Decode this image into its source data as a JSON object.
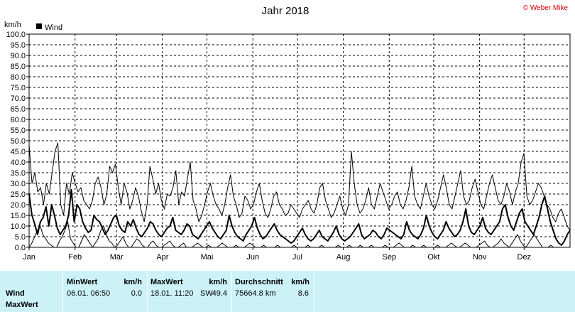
{
  "chart_data": {
    "type": "line",
    "title": "Jahr 2018",
    "copyright": "© Weber Mike",
    "ylabel": "km/h",
    "ylim": [
      0,
      100
    ],
    "yticks": [
      "0.0",
      "5.0",
      "10.0",
      "15.0",
      "20.0",
      "25.0",
      "30.0",
      "35.0",
      "40.0",
      "45.0",
      "50.0",
      "55.0",
      "60.0",
      "65.0",
      "70.0",
      "75.0",
      "80.0",
      "85.0",
      "90.0",
      "95.0",
      "100.0"
    ],
    "xlabels": [
      "Jan",
      "Feb",
      "Mär",
      "Apr",
      "Mai",
      "Jun",
      "Jul",
      "Aug",
      "Sep",
      "Okt",
      "Nov",
      "Dez"
    ],
    "grid": true,
    "legend": {
      "label": "Wind",
      "placement": "top-left"
    },
    "series": [
      {
        "name": "Wind",
        "style": "thick",
        "values": [
          25,
          15,
          11,
          6,
          12,
          14,
          19,
          10,
          20,
          15,
          9,
          6,
          8,
          10,
          15,
          27,
          12,
          20,
          18,
          12,
          9,
          7,
          8,
          15,
          13,
          12,
          9,
          6,
          8,
          11,
          14,
          15,
          10,
          8,
          7,
          12,
          10,
          13,
          9,
          6,
          5,
          7,
          9,
          12,
          11,
          8,
          6,
          5,
          7,
          9,
          10,
          14,
          8,
          7,
          6,
          8,
          11,
          10,
          6,
          5,
          4,
          6,
          8,
          10,
          12,
          9,
          7,
          5,
          4,
          6,
          8,
          15,
          10,
          7,
          5,
          4,
          3,
          6,
          8,
          10,
          14,
          9,
          6,
          4,
          5,
          7,
          9,
          11,
          8,
          6,
          5,
          4,
          3,
          2,
          3,
          5,
          7,
          9,
          6,
          4,
          3,
          4,
          6,
          8,
          5,
          4,
          3,
          5,
          7,
          10,
          6,
          4,
          3,
          4,
          5,
          7,
          9,
          11,
          6,
          4,
          5,
          6,
          8,
          7,
          5,
          4,
          6,
          9,
          8,
          7,
          6,
          5,
          4,
          6,
          12,
          8,
          6,
          5,
          4,
          6,
          9,
          15,
          10,
          7,
          5,
          4,
          6,
          8,
          12,
          9,
          7,
          5,
          6,
          8,
          12,
          18,
          10,
          7,
          6,
          8,
          10,
          14,
          9,
          7,
          6,
          8,
          10,
          12,
          18,
          20,
          14,
          10,
          8,
          12,
          16,
          18,
          12,
          10,
          8,
          6,
          10,
          14,
          20,
          24,
          18,
          12,
          8,
          4,
          2,
          1,
          3,
          6,
          8
        ]
      },
      {
        "name": "MaxWert",
        "style": "thin",
        "values": [
          48,
          30,
          35,
          26,
          28,
          20,
          30,
          25,
          35,
          45,
          49,
          20,
          15,
          30,
          25,
          35,
          30,
          26,
          28,
          22,
          20,
          18,
          22,
          30,
          33,
          28,
          20,
          25,
          38,
          35,
          39,
          28,
          20,
          30,
          26,
          18,
          22,
          28,
          24,
          17,
          12,
          20,
          38,
          32,
          25,
          30,
          22,
          18,
          25,
          24,
          28,
          36,
          20,
          26,
          24,
          32,
          40,
          22,
          18,
          12,
          15,
          20,
          26,
          30,
          24,
          20,
          18,
          15,
          20,
          28,
          34,
          24,
          20,
          14,
          16,
          24,
          22,
          18,
          20,
          26,
          30,
          22,
          16,
          14,
          18,
          24,
          26,
          20,
          18,
          15,
          16,
          20,
          18,
          16,
          14,
          18,
          20,
          22,
          18,
          16,
          20,
          28,
          30,
          22,
          18,
          14,
          16,
          20,
          24,
          18,
          15,
          20,
          45,
          30,
          20,
          16,
          18,
          22,
          28,
          20,
          18,
          24,
          30,
          26,
          22,
          18,
          20,
          24,
          26,
          20,
          18,
          22,
          28,
          38,
          24,
          20,
          18,
          24,
          30,
          24,
          20,
          18,
          22,
          28,
          34,
          28,
          20,
          18,
          24,
          30,
          36,
          24,
          20,
          22,
          28,
          32,
          26,
          20,
          18,
          24,
          30,
          34,
          28,
          22,
          20,
          24,
          30,
          26,
          20,
          26,
          30,
          40,
          44,
          24,
          20,
          22,
          26,
          30,
          28,
          24,
          20,
          18,
          14,
          12,
          16,
          18,
          14,
          10,
          8
        ]
      },
      {
        "name": "MinWert",
        "style": "thin",
        "values": [
          0,
          2,
          5,
          8,
          10,
          6,
          4,
          2,
          1,
          0,
          0,
          3,
          5,
          8,
          12,
          4,
          2,
          0,
          0,
          3,
          6,
          4,
          2,
          0,
          2,
          4,
          8,
          10,
          6,
          3,
          2,
          0,
          1,
          3,
          5,
          2,
          0,
          0,
          2,
          4,
          3,
          1,
          0,
          0,
          2,
          3,
          1,
          0,
          0,
          1,
          2,
          3,
          1,
          0,
          0,
          1,
          2,
          0,
          0,
          0,
          1,
          2,
          1,
          0,
          0,
          1,
          0,
          0,
          0,
          1,
          2,
          1,
          0,
          0,
          0,
          1,
          0,
          0,
          0,
          1,
          2,
          1,
          0,
          0,
          0,
          1,
          0,
          0,
          0,
          0,
          1,
          0,
          0,
          0,
          0,
          0,
          1,
          0,
          0,
          0,
          0,
          1,
          0,
          0,
          0,
          0,
          1,
          0,
          0,
          0,
          0,
          0,
          1,
          0,
          0,
          0,
          1,
          0,
          0,
          0,
          1,
          0,
          0,
          0,
          1,
          0,
          0,
          0,
          0,
          1,
          0,
          0,
          0,
          1,
          2,
          1,
          0,
          0,
          0,
          1,
          0,
          0,
          0,
          1,
          0,
          0,
          0,
          0,
          1,
          0,
          0,
          0,
          1,
          2,
          1,
          0,
          0,
          1,
          2,
          1,
          0,
          0,
          0,
          1,
          2,
          3,
          1,
          0,
          0,
          1,
          2,
          4,
          2,
          1,
          0,
          2,
          4,
          6,
          3,
          1,
          0,
          2,
          4,
          6,
          4,
          2,
          0,
          0,
          0,
          1,
          0,
          0,
          0,
          0,
          0,
          0,
          0
        ]
      }
    ]
  },
  "stats": {
    "row_labels": [
      "Wind",
      "MaxWert"
    ],
    "min": {
      "header": "MinWert",
      "unit": "km/h",
      "datetime": "06.01.  06:50",
      "value": "0.0"
    },
    "max": {
      "header": "MaxWert",
      "unit": "km/h",
      "datetime": "18.01.  11:20",
      "dir": "SW",
      "value": "49.4"
    },
    "avg": {
      "header": "Durchschnitt",
      "unit": "km/h",
      "distance": "75664.8 km",
      "value": "8.6"
    }
  }
}
